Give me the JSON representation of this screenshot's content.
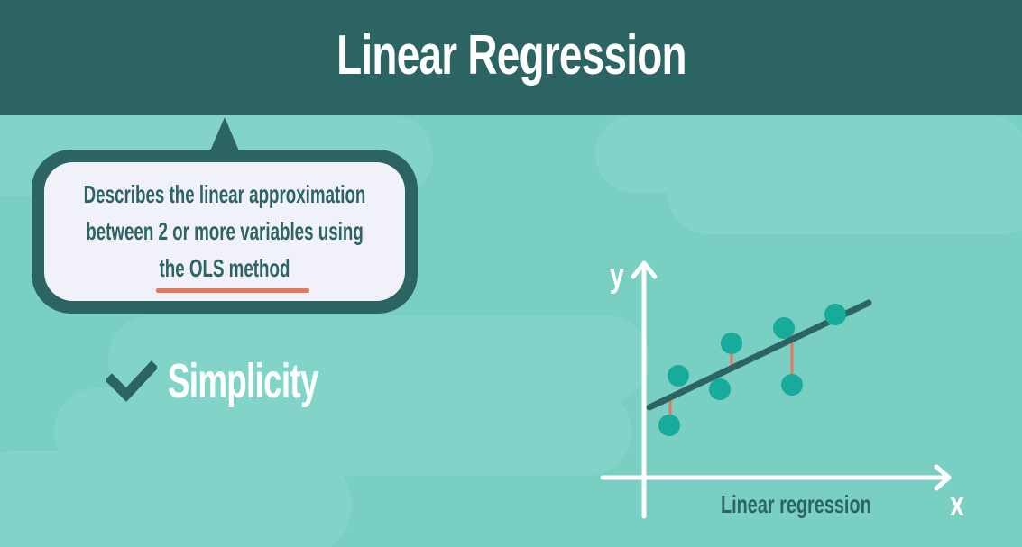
{
  "title": "Linear Regression",
  "bubble": {
    "line1": "Describes the linear approximation",
    "line2": "between 2 or more variables using",
    "line3": "the OLS method"
  },
  "feature": {
    "check_icon": "checkmark-icon",
    "label": "Simplicity"
  },
  "diagram": {
    "y_label": "y",
    "x_label": "x",
    "caption": "Linear regression"
  },
  "colors": {
    "header": "#2b6462",
    "background": "#79cfc2",
    "bubble": "#f1f1f9",
    "accent": "#e8765f",
    "point": "#17ab9b"
  }
}
